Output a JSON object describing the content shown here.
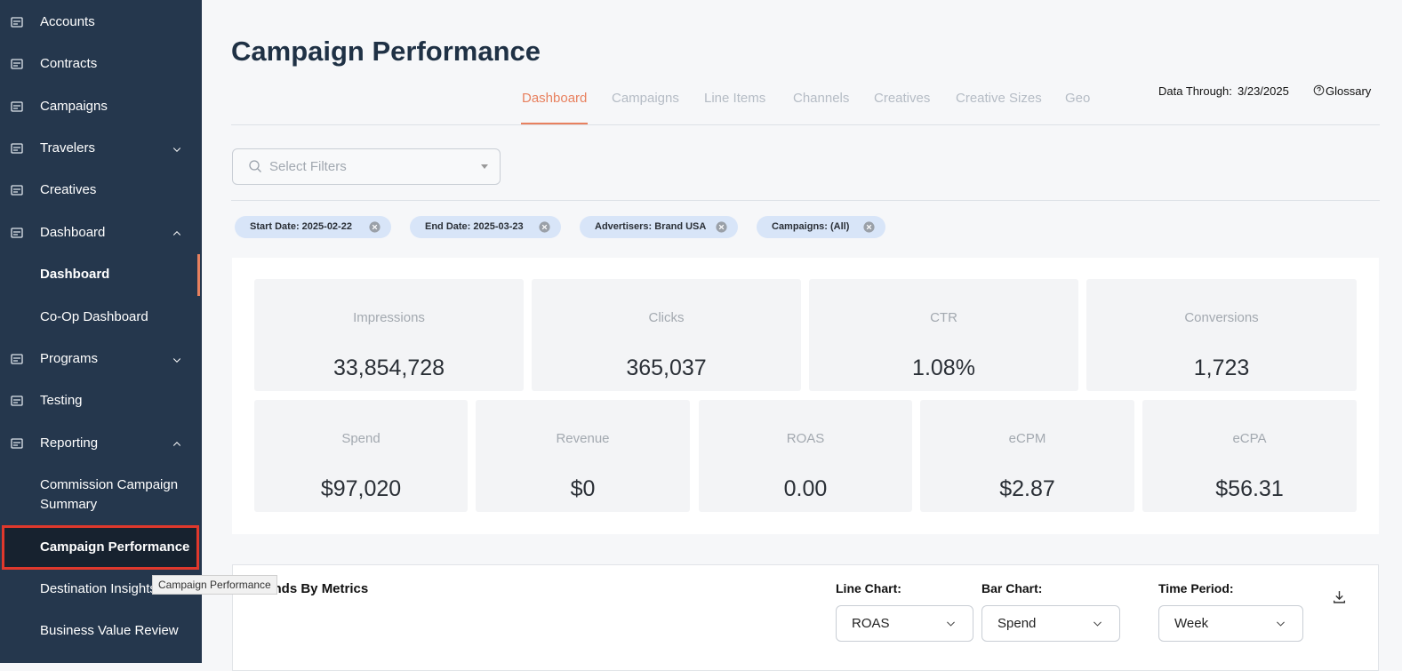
{
  "sidebar": {
    "items": [
      "Accounts",
      "Contracts",
      "Campaigns",
      "Travelers",
      "Creatives",
      "Dashboard",
      "Dashboard",
      "Co-Op Dashboard",
      "Programs",
      "Testing",
      "Reporting",
      "Commission Campaign Summary",
      "Campaign Performance",
      "Destination Insights",
      "Business Value Review"
    ]
  },
  "tooltip": "Campaign Performance",
  "header": {
    "title": "Campaign Performance",
    "tabs": [
      "Dashboard",
      "Campaigns",
      "Line Items",
      "Channels",
      "Creatives",
      "Creative Sizes",
      "Geo"
    ],
    "data_through_label": "Data Through:",
    "data_through_date": "3/23/2025",
    "glossary": "Glossary"
  },
  "filters": {
    "placeholder": "Select Filters",
    "chips": [
      "Start Date: 2025-02-22",
      "End Date: 2025-03-23",
      "Advertisers: Brand USA",
      "Campaigns: (All)"
    ]
  },
  "metrics": [
    {
      "label": "Impressions",
      "value": "33,854,728"
    },
    {
      "label": "Clicks",
      "value": "365,037"
    },
    {
      "label": "CTR",
      "value": "1.08%"
    },
    {
      "label": "Conversions",
      "value": "1,723"
    },
    {
      "label": "Spend",
      "value": "$97,020"
    },
    {
      "label": "Revenue",
      "value": "$0"
    },
    {
      "label": "ROAS",
      "value": "0.00"
    },
    {
      "label": "eCPM",
      "value": "$2.87"
    },
    {
      "label": "eCPA",
      "value": "$56.31"
    }
  ],
  "trends": {
    "title": "Trends By Metrics",
    "controls": [
      {
        "label": "Line Chart:",
        "value": "ROAS"
      },
      {
        "label": "Bar Chart:",
        "value": "Spend"
      },
      {
        "label": "Time Period:",
        "value": "Week"
      }
    ]
  }
}
